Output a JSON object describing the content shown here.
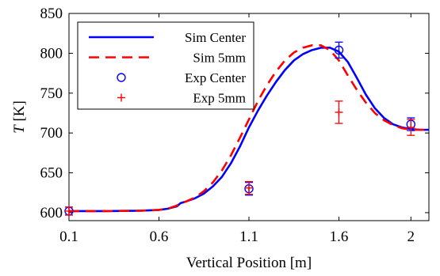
{
  "chart_data": {
    "type": "line",
    "xlabel": "Vertical Position [m]",
    "ylabel_italic": "T",
    "ylabel_rest": " [K]",
    "xlim": [
      0.1,
      2.1
    ],
    "ylim": [
      590,
      850
    ],
    "x_ticks": [
      0.1,
      0.6,
      1.1,
      1.6,
      2.0
    ],
    "x_tick_labels": [
      "0.1",
      "0.6",
      "1.1",
      "1.6",
      "2"
    ],
    "y_ticks": [
      600,
      650,
      700,
      750,
      800,
      850
    ],
    "y_tick_labels": [
      "600",
      "650",
      "700",
      "750",
      "800",
      "850"
    ],
    "grid": false,
    "legend_position": "top-left",
    "series": [
      {
        "name": "Sim Center",
        "kind": "line",
        "style": "solid",
        "color": "#0000ff",
        "x": [
          0.1,
          0.3,
          0.5,
          0.6,
          0.65,
          0.7,
          0.72,
          0.75,
          0.8,
          0.85,
          0.9,
          0.95,
          1.0,
          1.05,
          1.1,
          1.15,
          1.2,
          1.25,
          1.3,
          1.35,
          1.4,
          1.45,
          1.5,
          1.55,
          1.6,
          1.65,
          1.7,
          1.75,
          1.8,
          1.85,
          1.9,
          1.95,
          2.0,
          2.05,
          2.1
        ],
        "y": [
          602,
          602,
          602.5,
          603.5,
          605,
          608,
          612,
          614,
          618,
          624,
          633,
          645,
          662,
          683,
          707,
          728,
          747,
          764,
          779,
          791,
          799,
          804,
          807,
          807,
          802,
          789,
          769,
          748,
          731,
          719,
          711,
          707,
          705,
          704,
          704
        ]
      },
      {
        "name": "Sim 5mm",
        "kind": "line",
        "style": "dashed",
        "color": "#ff0000",
        "x": [
          0.1,
          0.3,
          0.5,
          0.6,
          0.65,
          0.7,
          0.72,
          0.75,
          0.8,
          0.85,
          0.9,
          0.95,
          1.0,
          1.05,
          1.1,
          1.15,
          1.2,
          1.25,
          1.3,
          1.35,
          1.4,
          1.45,
          1.5,
          1.55,
          1.6,
          1.65,
          1.7,
          1.75,
          1.8,
          1.85,
          1.9,
          1.95,
          2.0,
          2.05,
          2.1
        ],
        "y": [
          602,
          602,
          602.5,
          603.5,
          605,
          609,
          612,
          614,
          619,
          627,
          638,
          653,
          672,
          694,
          717,
          740,
          760,
          777,
          791,
          801,
          807,
          810,
          810,
          804,
          791,
          772,
          754,
          738,
          725,
          716,
          710,
          706,
          704,
          704,
          704
        ]
      },
      {
        "name": "Exp Center",
        "kind": "marker",
        "marker": "circle",
        "color": "#0000ff",
        "x": [
          0.1,
          1.1,
          1.6,
          2.0
        ],
        "y": [
          602,
          630,
          804,
          711
        ],
        "err": [
          5,
          8,
          10,
          8
        ]
      },
      {
        "name": "Exp 5mm",
        "kind": "marker",
        "marker": "plus",
        "color": "#ff0000",
        "x": [
          0.1,
          1.1,
          1.6,
          2.0
        ],
        "y": [
          602,
          631,
          726,
          707
        ],
        "err": [
          5,
          8,
          14,
          10
        ]
      }
    ]
  }
}
